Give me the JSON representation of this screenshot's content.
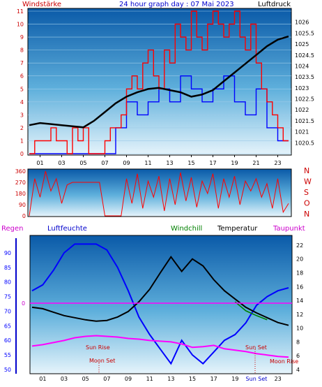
{
  "colors": {
    "windspeed": "#ff0000",
    "gust": "#0000ff",
    "pressure": "#000000",
    "direction": "#ff0000",
    "humidity": "#0000ff",
    "temperature": "#000000",
    "windchill": "#008000",
    "dewpoint": "#ff00ff",
    "axis_left": "#cc0000",
    "axis_right": "#000000",
    "title": "#0000cc",
    "sun_moon": "#cc0000"
  },
  "chart_data": [
    {
      "type": "line",
      "title": "24 hour graph day : 07 Mai 2023",
      "ylabel_left": "Windstärke",
      "ylabel_right": "Luftdruck",
      "ylim_left": [
        0,
        11
      ],
      "ylim_right": [
        1020,
        1026.5
      ],
      "left_ticks": [
        "0",
        "1",
        "2",
        "3",
        "4",
        "5",
        "6",
        "7",
        "8",
        "9",
        "10",
        "11"
      ],
      "right_ticks": [
        "1020.5",
        "1021",
        "1021.5",
        "1022",
        "1022.5",
        "1023",
        "1023.5",
        "1024",
        "1024.5",
        "1025",
        "1025.5",
        "1026"
      ],
      "x_ticks": [
        "01",
        "03",
        "05",
        "07",
        "09",
        "11",
        "13",
        "15",
        "17",
        "19",
        "21",
        "23"
      ],
      "series": [
        {
          "name": "Windstärke",
          "axis": "left",
          "x": [
            0,
            0.5,
            1,
            1.5,
            2,
            2.5,
            3,
            3.5,
            4,
            4.5,
            5,
            5.5,
            6,
            6.5,
            7,
            7.5,
            8,
            8.5,
            9,
            9.5,
            10,
            10.5,
            11,
            11.5,
            12,
            12.5,
            13,
            13.5,
            14,
            14.5,
            15,
            15.5,
            16,
            16.5,
            17,
            17.5,
            18,
            18.5,
            19,
            19.5,
            20,
            20.5,
            21,
            21.5,
            22,
            22.5,
            23,
            23.5,
            24
          ],
          "y": [
            0,
            1,
            1,
            1,
            2,
            1,
            1,
            0,
            2,
            1,
            2,
            0,
            0,
            0,
            1,
            2,
            2,
            3,
            5,
            6,
            5,
            7,
            8,
            6,
            5,
            8,
            7,
            10,
            9,
            8,
            11,
            9,
            8,
            10,
            11,
            10,
            9,
            10,
            11,
            9,
            8,
            10,
            7,
            5,
            4,
            3,
            2,
            1,
            1
          ]
        },
        {
          "name": "Böen",
          "axis": "left",
          "x": [
            0,
            1,
            2,
            3,
            4,
            5,
            6,
            7,
            8,
            9,
            10,
            11,
            12,
            13,
            14,
            15,
            16,
            17,
            18,
            19,
            20,
            21,
            22,
            23,
            24
          ],
          "y": [
            0,
            0,
            0,
            0,
            0,
            0,
            0,
            0,
            2,
            4,
            3,
            4,
            5,
            4,
            6,
            5,
            4,
            5,
            6,
            4,
            3,
            5,
            2,
            1,
            0
          ]
        },
        {
          "name": "Luftdruck",
          "axis": "right",
          "x": [
            0,
            1,
            2,
            3,
            4,
            5,
            6,
            7,
            8,
            9,
            10,
            11,
            12,
            13,
            14,
            15,
            16,
            17,
            18,
            19,
            20,
            21,
            22,
            23,
            24
          ],
          "y": [
            1021.3,
            1021.4,
            1021.35,
            1021.3,
            1021.25,
            1021.2,
            1021.5,
            1021.9,
            1022.3,
            1022.6,
            1022.8,
            1022.95,
            1023.0,
            1022.9,
            1022.8,
            1022.6,
            1022.7,
            1022.9,
            1023.3,
            1023.7,
            1024.1,
            1024.5,
            1024.9,
            1025.2,
            1025.35
          ]
        }
      ]
    },
    {
      "type": "line",
      "ylim": [
        0,
        360
      ],
      "left_ticks": [
        "0",
        "90",
        "180",
        "270",
        "360"
      ],
      "direction_labels": [
        "N",
        "W",
        "S",
        "O",
        "N"
      ],
      "series": [
        {
          "name": "Windrichtung",
          "x": [
            0,
            0.5,
            1,
            1.5,
            2,
            2.5,
            3,
            3.5,
            4,
            4.5,
            5,
            5.5,
            6,
            6.5,
            7,
            7.5,
            8,
            8.5,
            9,
            9.5,
            10,
            10.5,
            11,
            11.5,
            12,
            12.5,
            13,
            13.5,
            14,
            14.5,
            15,
            15.5,
            16,
            16.5,
            17,
            17.5,
            18,
            18.5,
            19,
            19.5,
            20,
            20.5,
            21,
            21.5,
            22,
            22.5,
            23,
            23.5,
            24
          ],
          "y": [
            0,
            300,
            150,
            360,
            200,
            300,
            100,
            250,
            270,
            270,
            270,
            270,
            270,
            270,
            0,
            0,
            0,
            0,
            300,
            100,
            340,
            60,
            280,
            150,
            320,
            40,
            300,
            90,
            350,
            120,
            310,
            70,
            280,
            180,
            340,
            60,
            300,
            150,
            320,
            90,
            280,
            200,
            300,
            150,
            260,
            60,
            300,
            30,
            100
          ]
        }
      ]
    },
    {
      "type": "line",
      "ylabel_left_1": "Regen",
      "ylabel_left_2": "Luftfeuchte",
      "legend": [
        "Windchill",
        "Temperatur",
        "Taupunkt"
      ],
      "ylim_left": [
        50,
        95
      ],
      "ylim_right": [
        4,
        23
      ],
      "left_ticks": [
        "50",
        "55",
        "60",
        "65",
        "70",
        "75",
        "80",
        "85",
        "90"
      ],
      "right_ticks": [
        "4",
        "6",
        "8",
        "10",
        "12",
        "14",
        "16",
        "18",
        "20",
        "22"
      ],
      "rain_tick": "0",
      "x_ticks": [
        "01",
        "03",
        "05",
        "07",
        "09",
        "11",
        "13",
        "15",
        "17",
        "19",
        "Sun Set",
        "23"
      ],
      "annotations": {
        "sun_rise": "Sun Rise",
        "moon_set": "Moon Set",
        "sun_set": "Sun Set",
        "moon_rise": "Moon Rise"
      },
      "series": [
        {
          "name": "Luftfeuchte",
          "axis": "left",
          "x": [
            0,
            1,
            2,
            3,
            4,
            5,
            6,
            7,
            8,
            9,
            10,
            11,
            12,
            13,
            14,
            15,
            16,
            17,
            18,
            19,
            20,
            21,
            22,
            23,
            24
          ],
          "y": [
            77,
            79,
            84,
            90,
            93,
            93,
            93,
            91,
            85,
            77,
            68,
            62,
            57,
            52,
            60,
            55,
            52,
            56,
            60,
            62,
            66,
            72,
            75,
            77,
            78
          ]
        },
        {
          "name": "Temperatur",
          "axis": "right",
          "x": [
            0,
            1,
            2,
            3,
            4,
            5,
            6,
            7,
            8,
            9,
            10,
            11,
            12,
            13,
            14,
            15,
            16,
            17,
            18,
            19,
            20,
            21,
            22,
            23,
            24
          ],
          "y": [
            13.0,
            12.8,
            12.3,
            11.8,
            11.5,
            11.2,
            11.0,
            11.1,
            11.6,
            12.4,
            13.8,
            15.6,
            18.0,
            20.3,
            18.2,
            20.0,
            19.0,
            17.0,
            15.4,
            14.2,
            13.0,
            12.2,
            11.5,
            10.8,
            10.4
          ]
        },
        {
          "name": "Windchill",
          "axis": "right",
          "x": [
            19,
            20,
            21,
            22
          ],
          "y": [
            13.8,
            12.5,
            11.8,
            11.2
          ]
        },
        {
          "name": "Taupunkt",
          "axis": "right",
          "x": [
            0,
            1,
            2,
            3,
            4,
            5,
            6,
            7,
            8,
            9,
            10,
            11,
            12,
            13,
            14,
            15,
            16,
            17,
            18,
            19,
            20,
            21,
            22,
            23,
            24
          ],
          "y": [
            7.4,
            7.6,
            7.9,
            8.2,
            8.6,
            8.8,
            8.9,
            8.8,
            8.7,
            8.5,
            8.4,
            8.2,
            8.1,
            8.0,
            7.7,
            7.2,
            7.3,
            7.5,
            7.0,
            6.8,
            6.6,
            6.3,
            6.1,
            5.9,
            5.8
          ]
        }
      ]
    }
  ]
}
